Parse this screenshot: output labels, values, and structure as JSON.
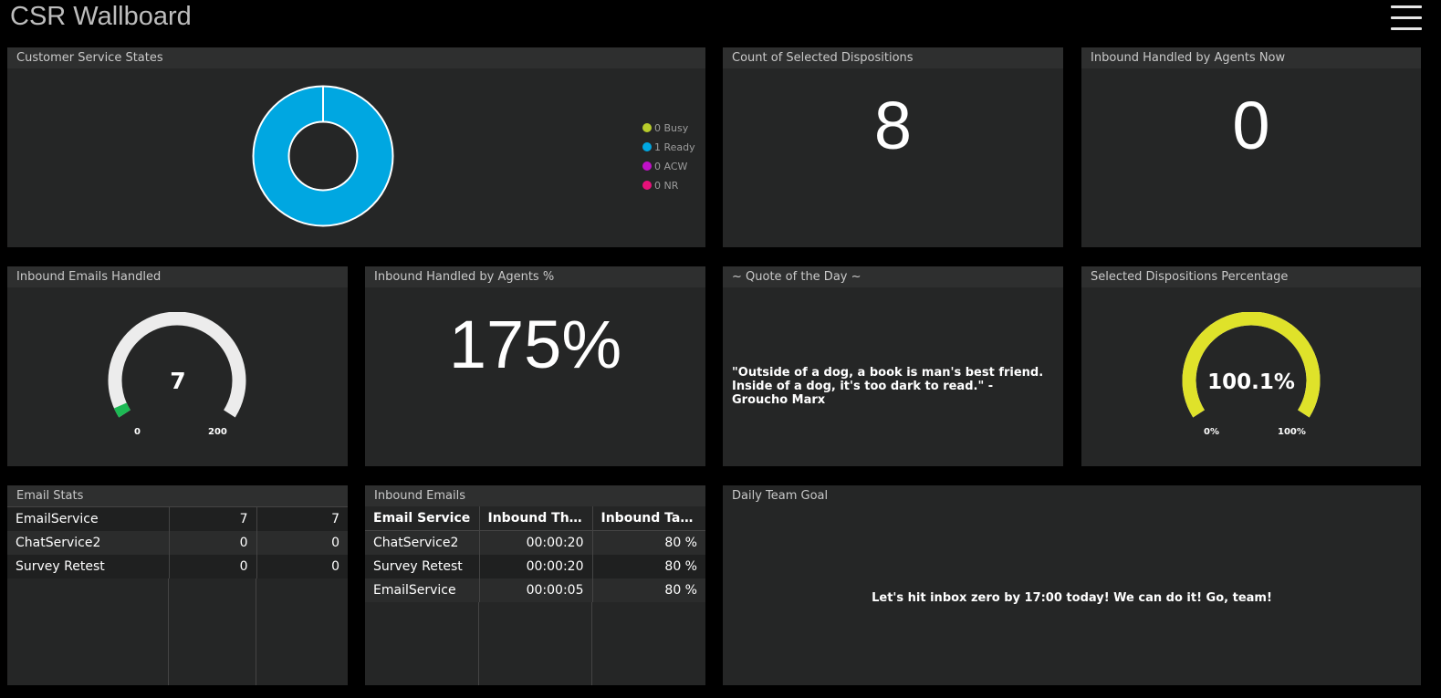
{
  "app": {
    "title": "CSR Wallboard",
    "menu_icon": "hamburger-menu-icon"
  },
  "panels": {
    "customer_states": {
      "title": "Customer Service States",
      "legend": [
        {
          "label": "0 Busy",
          "color": "#b8cc2b"
        },
        {
          "label": "1 Ready",
          "color": "#00a7e1"
        },
        {
          "label": "0 ACW",
          "color": "#c010c8"
        },
        {
          "label": "0 NR",
          "color": "#e8117a"
        }
      ]
    },
    "count_dispositions": {
      "title": "Count of Selected Dispositions",
      "value": "8"
    },
    "inbound_now": {
      "title": "Inbound Handled by Agents Now",
      "value": "0"
    },
    "inbound_emails_handled": {
      "title": "Inbound Emails Handled",
      "value": "7",
      "min": "0",
      "max": "200",
      "fraction": 0.035,
      "fill_color": "#1db954"
    },
    "inbound_pct": {
      "title": "Inbound Handled by Agents %",
      "value": "175%"
    },
    "quote": {
      "title": "~ Quote of the Day ~",
      "text": "\"Outside of a dog, a book is man's best friend. Inside of a dog, it's too dark to read.\" - Groucho Marx"
    },
    "dispositions_pct": {
      "title": "Selected Dispositions Percentage",
      "value": "100.1%",
      "min": "0%",
      "max": "100%",
      "fraction": 1.0,
      "fill_color": "#dfe22a"
    },
    "email_stats": {
      "title": "Email Stats",
      "rows": [
        [
          "EmailService",
          "7",
          "7"
        ],
        [
          "ChatService2",
          "0",
          "0"
        ],
        [
          "Survey Retest",
          "0",
          "0"
        ]
      ]
    },
    "inbound_emails": {
      "title": "Inbound Emails",
      "headers": [
        "Email Service",
        "Inbound Thresh...",
        "Inbound Target"
      ],
      "rows": [
        [
          "ChatService2",
          "00:00:20",
          "80 %"
        ],
        [
          "Survey Retest",
          "00:00:20",
          "80 %"
        ],
        [
          "EmailService",
          "00:00:05",
          "80 %"
        ]
      ]
    },
    "daily_goal": {
      "title": "Daily Team Goal",
      "text": "Let's hit inbox zero by 17:00 today! We can do it! Go, team!"
    }
  }
}
